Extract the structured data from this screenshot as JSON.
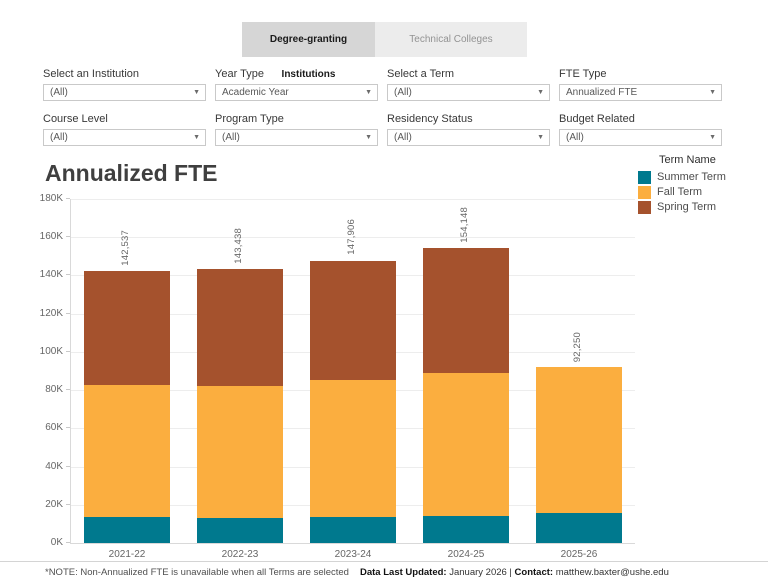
{
  "tabs": [
    {
      "label": "Degree-granting Institutions",
      "active": true
    },
    {
      "label": "Technical Colleges",
      "active": false
    }
  ],
  "filters": [
    {
      "label": "Select an Institution",
      "value": "(All)"
    },
    {
      "label": "Year Type",
      "value": "Academic Year"
    },
    {
      "label": "Select a Term",
      "value": "(All)"
    },
    {
      "label": "FTE Type",
      "value": "Annualized FTE"
    },
    {
      "label": "Course Level",
      "value": "(All)"
    },
    {
      "label": "Program Type",
      "value": "(All)"
    },
    {
      "label": "Residency Status",
      "value": "(All)"
    },
    {
      "label": "Budget Related",
      "value": "(All)"
    }
  ],
  "chart_title": "Annualized FTE",
  "legend": {
    "title": "Term Name",
    "items": [
      {
        "label": "Summer Term",
        "color": "#00798e"
      },
      {
        "label": "Fall Term",
        "color": "#fbae3f"
      },
      {
        "label": "Spring Term",
        "color": "#a5522d"
      }
    ]
  },
  "chart_data": {
    "type": "bar",
    "stacked": true,
    "categories": [
      "2021-22",
      "2022-23",
      "2023-24",
      "2024-25",
      "2025-26"
    ],
    "series": [
      {
        "name": "Summer Term",
        "color": "#00798e",
        "values": [
          13800,
          13000,
          13800,
          14200,
          15600
        ]
      },
      {
        "name": "Fall Term",
        "color": "#fbae3f",
        "values": [
          69100,
          69400,
          71700,
          74800,
          76650
        ]
      },
      {
        "name": "Spring Term",
        "color": "#a5522d",
        "values": [
          59637,
          61038,
          62406,
          65148,
          0
        ]
      }
    ],
    "totals": [
      142537,
      143438,
      147906,
      154148,
      92250
    ],
    "total_labels": [
      "142,537",
      "143,438",
      "147,906",
      "154,148",
      "92,250"
    ],
    "title": "Annualized FTE",
    "xlabel": "",
    "ylabel": "",
    "ylim": [
      0,
      180000
    ],
    "ytick_labels": [
      "0K",
      "20K",
      "40K",
      "60K",
      "80K",
      "100K",
      "120K",
      "140K",
      "160K",
      "180K"
    ],
    "ytick_values": [
      0,
      20000,
      40000,
      60000,
      80000,
      100000,
      120000,
      140000,
      160000,
      180000
    ],
    "grid": true,
    "legend_title": "Term Name",
    "legend_position": "top-right",
    "note": "Spring/Fall/Summer segment values are estimated from bar proportions; totals are labeled exactly"
  },
  "footer": {
    "note": "*NOTE: Non-Annualized FTE is unavailable when all Terms are selected",
    "updated_label": "Data Last Updated:",
    "updated_value": " January 2026 | ",
    "contact_label": "Contact:",
    "contact_value": " matthew.baxter@ushe.edu"
  }
}
